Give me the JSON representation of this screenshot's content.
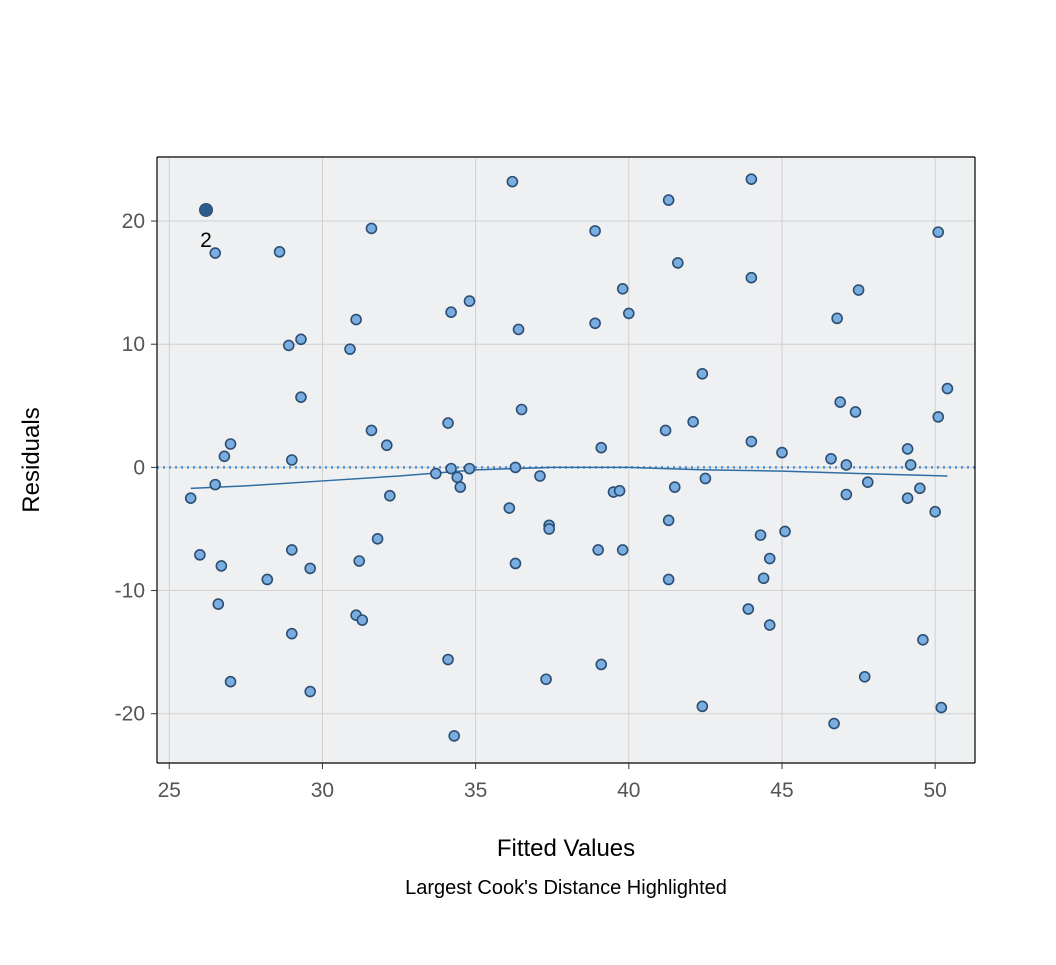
{
  "chart_data": {
    "type": "scatter",
    "title": "",
    "xlabel": "Fitted Values",
    "ylabel": "Residuals",
    "caption": "Largest Cook's Distance Highlighted",
    "xlim": [
      24.6,
      51.3
    ],
    "ylim": [
      -24.0,
      25.2
    ],
    "x_ticks": [
      25,
      30,
      35,
      40,
      45,
      50
    ],
    "y_ticks": [
      -20,
      -10,
      0,
      10,
      20
    ],
    "grid": true,
    "reference_line": {
      "y": 0,
      "style": "dotted",
      "color": "#4a90d9"
    },
    "colors": {
      "panel": "#eef0f2",
      "grid": "#d0d0d0",
      "point_fill": "#7aaee0",
      "point_stroke": "#2c4e73",
      "smooth": "#2e6da4",
      "highlight": "#2e5c8a"
    },
    "highlight": {
      "x": 26.2,
      "y": 20.9,
      "label": "2"
    },
    "smooth": {
      "x": [
        25.7,
        27.5,
        30,
        32.5,
        35,
        37.5,
        40,
        42.5,
        45,
        47.5,
        50.4
      ],
      "y": [
        -1.7,
        -1.5,
        -1.1,
        -0.7,
        -0.2,
        0.0,
        0.0,
        -0.2,
        -0.3,
        -0.5,
        -0.7
      ]
    },
    "points": [
      {
        "x": 25.7,
        "y": -2.5
      },
      {
        "x": 26.0,
        "y": -7.1
      },
      {
        "x": 26.5,
        "y": 17.4
      },
      {
        "x": 26.5,
        "y": -1.4
      },
      {
        "x": 26.6,
        "y": -11.1
      },
      {
        "x": 26.7,
        "y": -8.0
      },
      {
        "x": 26.8,
        "y": 0.9
      },
      {
        "x": 27.0,
        "y": 1.9
      },
      {
        "x": 27.0,
        "y": -17.4
      },
      {
        "x": 28.2,
        "y": -9.1
      },
      {
        "x": 28.6,
        "y": 17.5
      },
      {
        "x": 28.9,
        "y": 9.9
      },
      {
        "x": 29.0,
        "y": -6.7
      },
      {
        "x": 29.0,
        "y": -13.5
      },
      {
        "x": 29.0,
        "y": 0.6
      },
      {
        "x": 29.3,
        "y": 10.4
      },
      {
        "x": 29.3,
        "y": 5.7
      },
      {
        "x": 29.6,
        "y": -8.2
      },
      {
        "x": 29.6,
        "y": -18.2
      },
      {
        "x": 30.9,
        "y": 9.6
      },
      {
        "x": 31.1,
        "y": 12.0
      },
      {
        "x": 31.2,
        "y": -7.6
      },
      {
        "x": 31.1,
        "y": -12.0
      },
      {
        "x": 31.3,
        "y": -12.4
      },
      {
        "x": 31.6,
        "y": 19.4
      },
      {
        "x": 31.6,
        "y": 3.0
      },
      {
        "x": 31.8,
        "y": -5.8
      },
      {
        "x": 32.1,
        "y": 1.8
      },
      {
        "x": 32.2,
        "y": -2.3
      },
      {
        "x": 33.7,
        "y": -0.5
      },
      {
        "x": 34.1,
        "y": 3.6
      },
      {
        "x": 34.1,
        "y": -15.6
      },
      {
        "x": 34.2,
        "y": 12.6
      },
      {
        "x": 34.2,
        "y": -0.1
      },
      {
        "x": 34.3,
        "y": -21.8
      },
      {
        "x": 34.4,
        "y": -0.8
      },
      {
        "x": 34.5,
        "y": -1.6
      },
      {
        "x": 34.8,
        "y": 13.5
      },
      {
        "x": 34.8,
        "y": -0.1
      },
      {
        "x": 36.1,
        "y": -3.3
      },
      {
        "x": 36.2,
        "y": 23.2
      },
      {
        "x": 36.3,
        "y": -7.8
      },
      {
        "x": 36.4,
        "y": 11.2
      },
      {
        "x": 36.5,
        "y": 4.7
      },
      {
        "x": 36.3,
        "y": 0.0
      },
      {
        "x": 37.1,
        "y": -0.7
      },
      {
        "x": 37.3,
        "y": -17.2
      },
      {
        "x": 37.4,
        "y": -4.7
      },
      {
        "x": 37.4,
        "y": -5.0
      },
      {
        "x": 38.9,
        "y": 19.2
      },
      {
        "x": 38.9,
        "y": 11.7
      },
      {
        "x": 39.0,
        "y": -6.7
      },
      {
        "x": 39.1,
        "y": 1.6
      },
      {
        "x": 39.1,
        "y": -16.0
      },
      {
        "x": 39.5,
        "y": -2.0
      },
      {
        "x": 39.7,
        "y": -1.9
      },
      {
        "x": 39.8,
        "y": 14.5
      },
      {
        "x": 39.8,
        "y": -6.7
      },
      {
        "x": 40.0,
        "y": 12.5
      },
      {
        "x": 41.2,
        "y": 3.0
      },
      {
        "x": 41.3,
        "y": 21.7
      },
      {
        "x": 41.3,
        "y": -4.3
      },
      {
        "x": 41.3,
        "y": -9.1
      },
      {
        "x": 41.5,
        "y": -1.6
      },
      {
        "x": 41.6,
        "y": 16.6
      },
      {
        "x": 42.1,
        "y": 3.7
      },
      {
        "x": 42.4,
        "y": 7.6
      },
      {
        "x": 42.4,
        "y": -19.4
      },
      {
        "x": 42.5,
        "y": -0.9
      },
      {
        "x": 43.9,
        "y": -11.5
      },
      {
        "x": 44.0,
        "y": 23.4
      },
      {
        "x": 44.0,
        "y": 15.4
      },
      {
        "x": 44.0,
        "y": 2.1
      },
      {
        "x": 44.3,
        "y": -5.5
      },
      {
        "x": 44.4,
        "y": -9.0
      },
      {
        "x": 44.6,
        "y": -7.4
      },
      {
        "x": 44.6,
        "y": -12.8
      },
      {
        "x": 45.0,
        "y": 1.2
      },
      {
        "x": 45.1,
        "y": -5.2
      },
      {
        "x": 46.6,
        "y": 0.7
      },
      {
        "x": 46.7,
        "y": -20.8
      },
      {
        "x": 46.8,
        "y": 12.1
      },
      {
        "x": 46.9,
        "y": 5.3
      },
      {
        "x": 47.1,
        "y": 0.2
      },
      {
        "x": 47.1,
        "y": -2.2
      },
      {
        "x": 47.4,
        "y": 4.5
      },
      {
        "x": 47.5,
        "y": 14.4
      },
      {
        "x": 47.7,
        "y": -17.0
      },
      {
        "x": 47.8,
        "y": -1.2
      },
      {
        "x": 49.1,
        "y": 1.5
      },
      {
        "x": 49.1,
        "y": -2.5
      },
      {
        "x": 49.2,
        "y": 0.2
      },
      {
        "x": 49.5,
        "y": -1.7
      },
      {
        "x": 49.6,
        "y": -14.0
      },
      {
        "x": 50.0,
        "y": -3.6
      },
      {
        "x": 50.1,
        "y": 19.1
      },
      {
        "x": 50.1,
        "y": 4.1
      },
      {
        "x": 50.2,
        "y": -19.5
      },
      {
        "x": 50.4,
        "y": 6.4
      }
    ]
  }
}
